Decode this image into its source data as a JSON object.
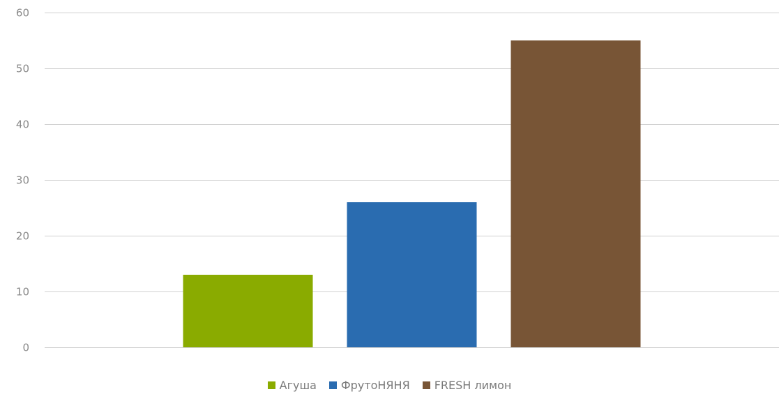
{
  "chart_data": {
    "type": "bar",
    "title": "",
    "xlabel": "",
    "ylabel": "",
    "ylim": [
      0,
      60
    ],
    "yticks": [
      0,
      10,
      20,
      30,
      40,
      50,
      60
    ],
    "grid": true,
    "legend_position": "bottom",
    "series": [
      {
        "name": "Агуша",
        "value": 13,
        "color": "#8aab00"
      },
      {
        "name": "ФрутоНЯНЯ",
        "value": 26,
        "color": "#2a6cb0"
      },
      {
        "name": "FRESH лимон",
        "value": 55,
        "color": "#785536"
      }
    ]
  }
}
